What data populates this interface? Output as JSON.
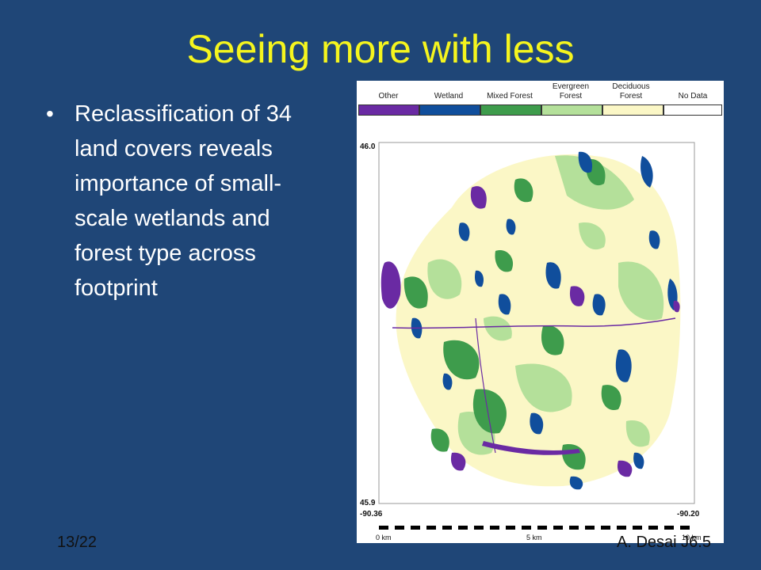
{
  "slide": {
    "title": "Seeing more with less",
    "bullet": "Reclassification of 34 land covers reveals importance of small-scale wetlands and forest type across footprint",
    "number": "13/22",
    "footer": "A. Desai J6.5"
  },
  "map": {
    "legend": [
      {
        "label": "Other",
        "color": "#6a2aa3"
      },
      {
        "label": "Wetland",
        "color": "#104e9c"
      },
      {
        "label": "Mixed Forest",
        "color": "#3e9c4c"
      },
      {
        "label": "Evergreen Forest",
        "color": "#b4e09a"
      },
      {
        "label": "Deciduous Forest",
        "color": "#fbf7c6"
      },
      {
        "label": "No Data",
        "color": "#ffffff"
      }
    ],
    "lat_top": "46.0",
    "lat_bottom": "45.9",
    "lon_left": "-90.36",
    "lon_right": "-90.20",
    "scale_start": "0 km",
    "scale_mid": "5 km",
    "scale_end": "10 km"
  }
}
